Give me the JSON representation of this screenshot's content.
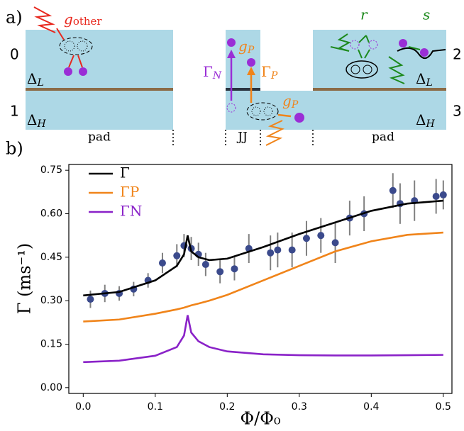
{
  "diagram": {
    "panel_a": "a)",
    "panel_b": "b)",
    "states": [
      "0",
      "1",
      "2",
      "3"
    ],
    "gap_left_top": {
      "symbol": "Δ",
      "sub": "L"
    },
    "gap_left_bottom": {
      "symbol": "Δ",
      "sub": "H"
    },
    "gap_right_top": {
      "symbol": "Δ",
      "sub": "L"
    },
    "gap_right_bottom": {
      "symbol": "Δ",
      "sub": "H"
    },
    "region_labels": [
      "pad",
      "JJ",
      "pad"
    ],
    "g_other": {
      "symbol": "g",
      "sub": "other"
    },
    "r": "r",
    "s": "s",
    "g_p_top": {
      "symbol": "g",
      "sub": "P"
    },
    "gamma_n": {
      "symbol": "Γ",
      "sub": "N"
    },
    "gamma_p": {
      "symbol": "Γ",
      "sub": "P"
    },
    "g_p_bottom": {
      "symbol": "g",
      "sub": "P"
    }
  },
  "chart_data": {
    "type": "line",
    "x": [
      0,
      0.05,
      0.1,
      0.13,
      0.14,
      0.145,
      0.15,
      0.16,
      0.175,
      0.2,
      0.25,
      0.3,
      0.35,
      0.4,
      0.45,
      0.5
    ],
    "series": [
      {
        "name": "Γ",
        "color": "#000000",
        "values": [
          0.318,
          0.33,
          0.37,
          0.42,
          0.46,
          0.525,
          0.47,
          0.45,
          0.44,
          0.445,
          0.485,
          0.53,
          0.57,
          0.61,
          0.635,
          0.645
        ]
      },
      {
        "name": "ΓP",
        "color": "#f0841a",
        "values": [
          0.228,
          0.235,
          0.255,
          0.27,
          0.276,
          0.28,
          0.284,
          0.29,
          0.3,
          0.32,
          0.37,
          0.42,
          0.47,
          0.505,
          0.527,
          0.535
        ]
      },
      {
        "name": "ΓN",
        "color": "#8a22c8",
        "values": [
          0.088,
          0.093,
          0.11,
          0.14,
          0.18,
          0.25,
          0.19,
          0.16,
          0.14,
          0.125,
          0.115,
          0.112,
          0.111,
          0.111,
          0.112,
          0.113
        ]
      }
    ],
    "points": {
      "type": "scatter",
      "color": "#3b4a8c",
      "error_color": "#808080",
      "x": [
        0.01,
        0.03,
        0.05,
        0.07,
        0.09,
        0.11,
        0.13,
        0.14,
        0.15,
        0.16,
        0.17,
        0.19,
        0.21,
        0.23,
        0.26,
        0.27,
        0.29,
        0.31,
        0.33,
        0.35,
        0.37,
        0.39,
        0.43,
        0.44,
        0.46,
        0.49,
        0.5
      ],
      "values": [
        0.305,
        0.325,
        0.325,
        0.34,
        0.37,
        0.43,
        0.455,
        0.49,
        0.48,
        0.46,
        0.425,
        0.4,
        0.41,
        0.48,
        0.465,
        0.475,
        0.475,
        0.515,
        0.525,
        0.5,
        0.585,
        0.6,
        0.68,
        0.635,
        0.645,
        0.66,
        0.665
      ],
      "errors": [
        0.03,
        0.03,
        0.025,
        0.025,
        0.025,
        0.035,
        0.04,
        0.04,
        0.04,
        0.04,
        0.04,
        0.04,
        0.04,
        0.05,
        0.06,
        0.06,
        0.06,
        0.06,
        0.06,
        0.07,
        0.06,
        0.06,
        0.06,
        0.07,
        0.07,
        0.06,
        0.05
      ]
    },
    "xlim": [
      -0.02,
      0.512
    ],
    "ylim": [
      -0.02,
      0.77
    ],
    "xticks": [
      {
        "value": 0,
        "label": "0.0"
      },
      0.1,
      0.2,
      0.3,
      0.4,
      0.5
    ],
    "yticks": [
      {
        "value": 0,
        "label": "0.00"
      },
      0.15,
      {
        "value": 0.3,
        "label": "0.30"
      },
      0.45,
      {
        "value": 0.6,
        "label": "0.60"
      },
      0.75
    ],
    "xlabel": "Φ/Φ₀",
    "ylabel": "Γ (ms⁻¹)",
    "legend": "upper left"
  }
}
